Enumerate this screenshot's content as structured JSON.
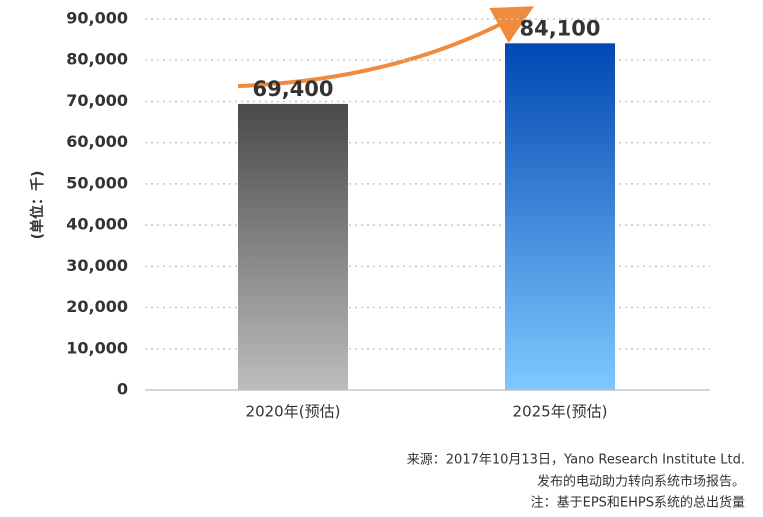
{
  "chart_data": {
    "type": "bar",
    "y_label": "(单位：千)",
    "categories": [
      "2020年(预估)",
      "2025年(预估)"
    ],
    "values": [
      69400,
      84100
    ],
    "value_labels": [
      "69,400",
      "84,100"
    ],
    "gradients": [
      [
        "#4a4a4a",
        "#bdbdbd"
      ],
      [
        "#0047b3",
        "#80c8ff"
      ]
    ],
    "ylim": [
      0,
      90000
    ],
    "yticks": [
      0,
      {
        "value": 10000,
        "label": "10,000"
      },
      {
        "value": 20000,
        "label": "20,000"
      },
      {
        "value": 30000,
        "label": "30,000"
      },
      {
        "value": 40000,
        "label": "40,000"
      },
      {
        "value": 50000,
        "label": "50,000"
      },
      {
        "value": 60000,
        "label": "60,000"
      },
      {
        "value": 70000,
        "label": "70,000"
      },
      {
        "value": 80000,
        "label": "80,000"
      },
      {
        "value": 90000,
        "label": "90,000"
      }
    ],
    "grid": true,
    "notes": [
      "来源：2017年10月13日，Yano Research Institute Ltd.",
      "发布的电动助力转向系统市场报告。",
      "注：基于EPS和EHPS系统的总出货量"
    ]
  }
}
